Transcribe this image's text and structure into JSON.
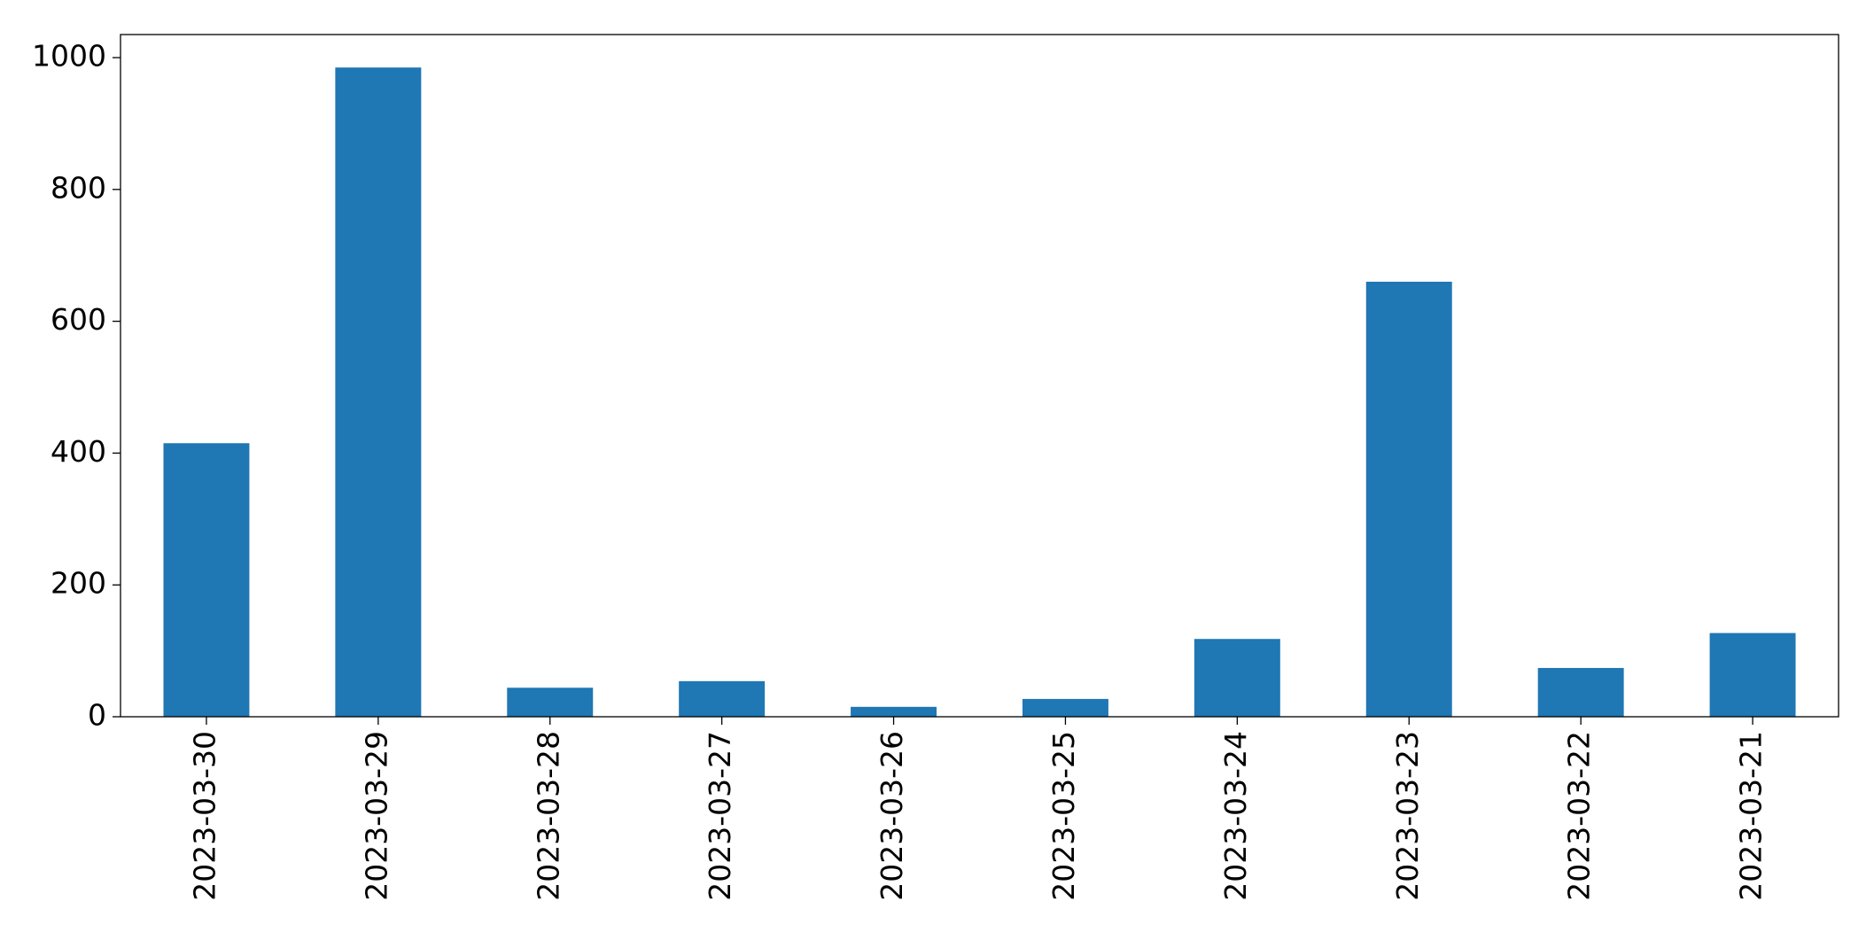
{
  "chart_data": {
    "type": "bar",
    "categories": [
      "2023-03-30",
      "2023-03-29",
      "2023-03-28",
      "2023-03-27",
      "2023-03-26",
      "2023-03-25",
      "2023-03-24",
      "2023-03-23",
      "2023-03-22",
      "2023-03-21"
    ],
    "values": [
      415,
      985,
      44,
      54,
      15,
      27,
      118,
      660,
      74,
      127
    ],
    "color": "#1f77b4",
    "ylim": [
      0,
      1035
    ],
    "yticks": [
      0,
      200,
      400,
      600,
      800,
      1000
    ],
    "grid": false
  }
}
